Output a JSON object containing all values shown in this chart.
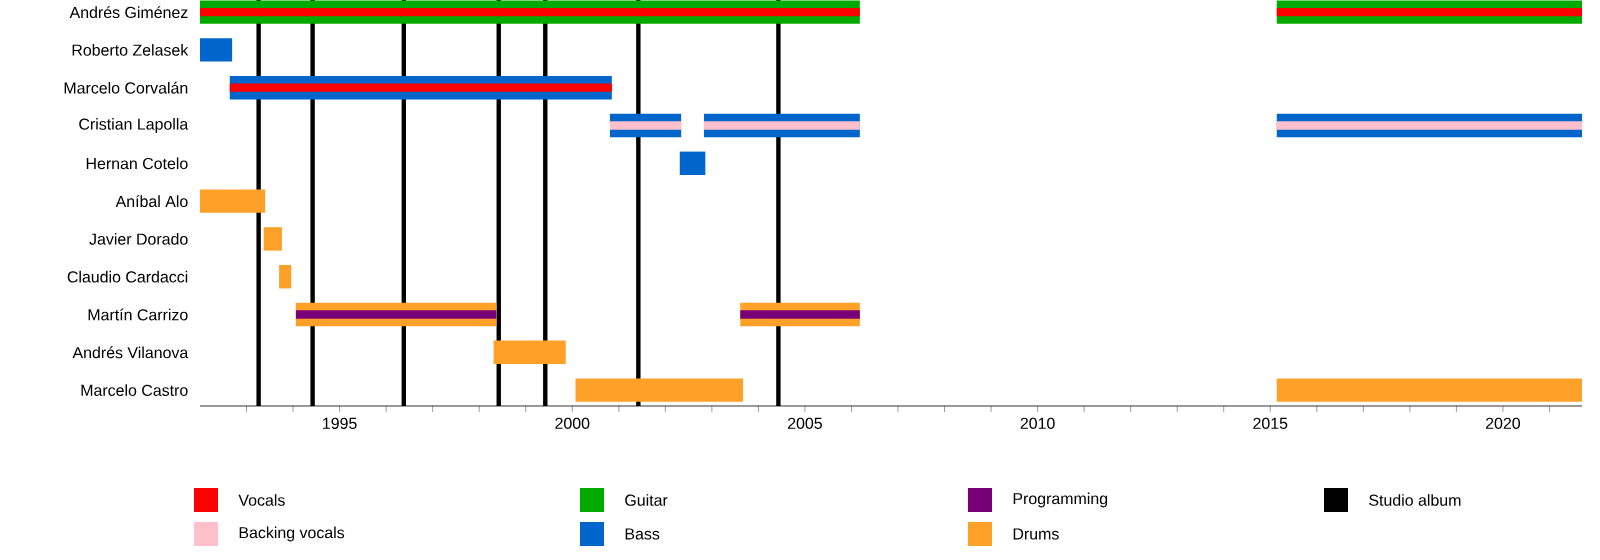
{
  "chart_data": {
    "type": "bar",
    "orientation": "horizontal",
    "legend": "bottom",
    "grid": false,
    "categories": [
      "Andrés Giménez",
      "Roberto Zelasek",
      "Marcelo Corvalán",
      "Cristian Lapolla",
      "Hernan Cotelo",
      "Aníbal Alo",
      "Javier Dorado",
      "Claudio Cardacci",
      "Martín Carrizo",
      "Andrés Vilanova",
      "Marcelo Castro"
    ],
    "xlim": [
      1992,
      2021.7
    ],
    "xticks": [
      {
        "value": 1993,
        "label": null
      },
      {
        "value": 1994,
        "label": null
      },
      1995,
      {
        "value": 1996,
        "label": null
      },
      {
        "value": 1997,
        "label": null
      },
      {
        "value": 1998,
        "label": null
      },
      {
        "value": 1999,
        "label": null
      },
      2000,
      {
        "value": 2001,
        "label": null
      },
      {
        "value": 2002,
        "label": null
      },
      {
        "value": 2003,
        "label": null
      },
      {
        "value": 2004,
        "label": null
      },
      2005,
      {
        "value": 2006,
        "label": null
      },
      {
        "value": 2007,
        "label": null
      },
      {
        "value": 2008,
        "label": null
      },
      {
        "value": 2009,
        "label": null
      },
      2010,
      {
        "value": 2011,
        "label": null
      },
      {
        "value": 2012,
        "label": null
      },
      {
        "value": 2013,
        "label": null
      },
      {
        "value": 2014,
        "label": null
      },
      2015,
      {
        "value": 2016,
        "label": null
      },
      {
        "value": 2017,
        "label": null
      },
      {
        "value": 2018,
        "label": null
      },
      {
        "value": 2019,
        "label": null
      },
      2020,
      {
        "value": 2021,
        "label": null
      }
    ],
    "series": [
      {
        "name": "Vocals",
        "color": "#ff0000",
        "base": [
          1992,
          null,
          1992.64,
          null,
          null,
          null,
          null,
          null,
          null,
          null,
          null
        ],
        "values": [
          14.18,
          null,
          8.21,
          null,
          null,
          null,
          null,
          null,
          null,
          null,
          null
        ]
      },
      {
        "color": "#ff0000",
        "base": [
          2015.14,
          null,
          null,
          null,
          null,
          null,
          null,
          null,
          null,
          null,
          null
        ],
        "values": [
          6.56,
          null,
          null,
          null,
          null,
          null,
          null,
          null,
          null,
          null,
          null
        ]
      },
      {
        "name": "Backing vocals",
        "color": "#ffc0cb",
        "base": [
          null,
          null,
          null,
          2000.81,
          null,
          null,
          null,
          null,
          null,
          null,
          null
        ],
        "values": [
          null,
          null,
          null,
          1.53,
          null,
          null,
          null,
          null,
          null,
          null,
          null
        ]
      },
      {
        "color": "#ffc0cb",
        "base": [
          null,
          null,
          null,
          2002.83,
          null,
          null,
          null,
          null,
          null,
          null,
          null
        ],
        "values": [
          null,
          null,
          null,
          3.35,
          null,
          null,
          null,
          null,
          null,
          null,
          null
        ]
      },
      {
        "color": "#ffc0cb",
        "base": [
          null,
          null,
          null,
          2015.14,
          null,
          null,
          null,
          null,
          null,
          null,
          null
        ],
        "values": [
          null,
          null,
          null,
          6.56,
          null,
          null,
          null,
          null,
          null,
          null,
          null
        ]
      },
      {
        "name": "Guitar",
        "color": "#00aa00",
        "base": [
          1992,
          null,
          null,
          null,
          null,
          null,
          null,
          null,
          null,
          null,
          null
        ],
        "values": [
          14.18,
          null,
          null,
          null,
          null,
          null,
          null,
          null,
          null,
          null,
          null
        ]
      },
      {
        "color": "#00aa00",
        "base": [
          2015.14,
          null,
          null,
          null,
          null,
          null,
          null,
          null,
          null,
          null,
          null
        ],
        "values": [
          6.56,
          null,
          null,
          null,
          null,
          null,
          null,
          null,
          null,
          null,
          null
        ]
      },
      {
        "name": "Bass",
        "color": "#0066cc",
        "base": [
          null,
          1992,
          1992.64,
          2000.81,
          2002.31,
          null,
          null,
          null,
          null,
          null,
          null
        ],
        "values": [
          null,
          0.69,
          8.21,
          1.53,
          0.55,
          null,
          null,
          null,
          null,
          null,
          null
        ]
      },
      {
        "color": "#0066cc",
        "base": [
          null,
          null,
          null,
          2002.83,
          null,
          null,
          null,
          null,
          null,
          null,
          null
        ],
        "values": [
          null,
          null,
          null,
          3.35,
          null,
          null,
          null,
          null,
          null,
          null,
          null
        ]
      },
      {
        "color": "#0066cc",
        "base": [
          null,
          null,
          null,
          2015.14,
          null,
          null,
          null,
          null,
          null,
          null,
          null
        ],
        "values": [
          null,
          null,
          null,
          6.56,
          null,
          null,
          null,
          null,
          null,
          null,
          null
        ]
      },
      {
        "name": "Programming",
        "color": "#770077",
        "base": [
          null,
          null,
          null,
          null,
          null,
          null,
          null,
          null,
          1994.06,
          null,
          null
        ],
        "values": [
          null,
          null,
          null,
          null,
          null,
          null,
          null,
          null,
          4.31,
          null,
          null
        ]
      },
      {
        "color": "#770077",
        "base": [
          null,
          null,
          null,
          null,
          null,
          null,
          null,
          null,
          2003.61,
          null,
          null
        ],
        "values": [
          null,
          null,
          null,
          null,
          null,
          null,
          null,
          null,
          2.57,
          null,
          null
        ]
      },
      {
        "name": "Drums",
        "color": "#ffa028",
        "base": [
          null,
          null,
          null,
          null,
          null,
          1992,
          1993.37,
          1993.7,
          1994.06,
          1998.31,
          2000.07
        ],
        "values": [
          null,
          null,
          null,
          null,
          null,
          1.4,
          0.39,
          0.26,
          4.31,
          1.55,
          3.6
        ]
      },
      {
        "color": "#ffa028",
        "base": [
          null,
          null,
          null,
          null,
          null,
          null,
          null,
          null,
          2003.61,
          null,
          2015.14
        ],
        "values": [
          null,
          null,
          null,
          null,
          null,
          null,
          null,
          null,
          2.57,
          null,
          6.56
        ]
      }
    ],
    "ref_lines": [
      {
        "axis": "x",
        "value": 1993.26,
        "label": "Studio album",
        "color": "#000000"
      },
      {
        "axis": "x",
        "value": 1994.42,
        "color": "#000000"
      },
      {
        "axis": "x",
        "value": 1996.38,
        "color": "#000000"
      },
      {
        "axis": "x",
        "value": 1998.42,
        "color": "#000000"
      },
      {
        "axis": "x",
        "value": 1999.42,
        "color": "#000000"
      },
      {
        "axis": "x",
        "value": 2001.42,
        "color": "#000000"
      },
      {
        "axis": "x",
        "value": 2004.43,
        "color": "#000000"
      }
    ]
  }
}
